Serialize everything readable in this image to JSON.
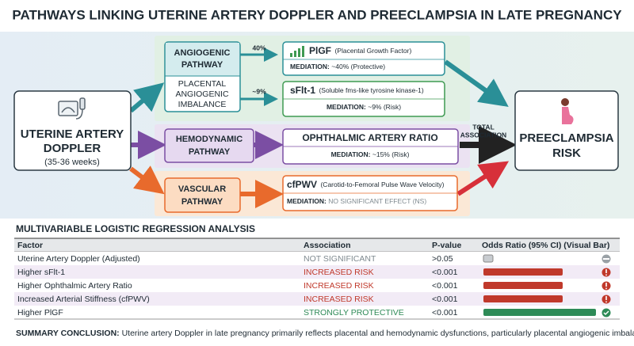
{
  "title": "PATHWAYS LINKING UTERINE ARTERY DOPPLER AND PREECLAMPSIA IN LATE PREGNANCY",
  "source": {
    "lines": [
      "UTERINE ARTERY",
      "DOPPLER"
    ],
    "note": "(35-36 weeks)"
  },
  "pathways": [
    {
      "lines": [
        "ANGIOGENIC",
        "PATHWAY"
      ],
      "detail": [
        "PLACENTAL",
        "ANGIOGENIC",
        "IMBALANCE"
      ]
    },
    {
      "lines": [
        "HEMODYNAMIC",
        "PATHWAY"
      ]
    },
    {
      "lines": [
        "VASCULAR",
        "PATHWAY"
      ]
    }
  ],
  "links": [
    "40%",
    "~9%"
  ],
  "mediators": [
    {
      "name": "PlGF",
      "full": "(Placental Growth Factor)",
      "mediation_label": "MEDIATION:",
      "mediation": "~40% (Protective)"
    },
    {
      "name": "sFlt-1",
      "full": "(Soluble fms-like tyrosine kinase-1)",
      "mediation_label": "MEDIATION:",
      "mediation": "~9% (Risk)"
    },
    {
      "name": "OPHTHALMIC ARTERY RATIO",
      "mediation_label": "MEDIATION:",
      "mediation": "~15% (Risk)"
    },
    {
      "name": "cfPWV",
      "full": "(Carotid-to-Femoral Pulse Wave Velocity)",
      "mediation_label": "MEDIATION:",
      "mediation": "NO SIGNIFICANT EFFECT (NS)"
    }
  ],
  "total_association": [
    "TOTAL",
    "ASSOCIATION"
  ],
  "outcome": [
    "PREECLAMPSIA",
    "RISK"
  ],
  "table": {
    "title": "MULTIVARIABLE LOGISTIC REGRESSION ANALYSIS",
    "header": [
      "Factor",
      "Association",
      "P-value",
      "Odds Ratio (95% CI) (Visual Bar)"
    ],
    "rows": [
      [
        "Uterine Artery Doppler (Adjusted)",
        "NOT SIGNIFICANT",
        ">0.05"
      ],
      [
        "Higher sFlt-1",
        "INCREASED RISK",
        "<0.001"
      ],
      [
        "Higher Ophthalmic Artery Ratio",
        "INCREASED RISK",
        "<0.001"
      ],
      [
        "Increased Arterial Stiffness (cfPWV)",
        "INCREASED RISK",
        "<0.001"
      ],
      [
        "Higher PlGF",
        "STRONGLY PROTECTIVE",
        "<0.001"
      ]
    ]
  },
  "summary": {
    "label": "SUMMARY CONCLUSION:",
    "text": "Uterine artery Doppler in late pregnancy primarily reflects placental and hemodynamic dysfunctions, particularly placental angiogenic imbalance."
  }
}
